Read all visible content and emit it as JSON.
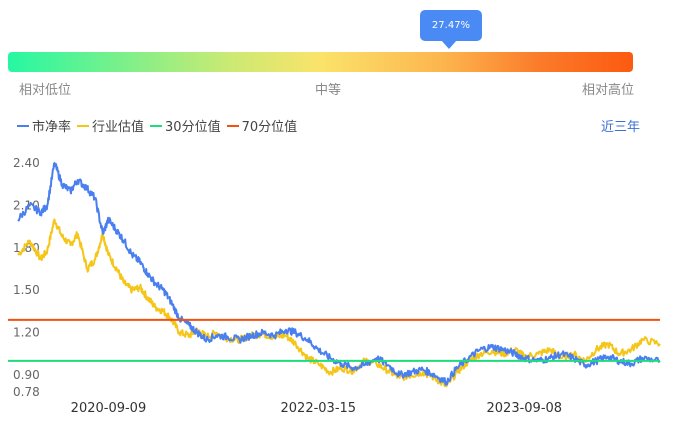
{
  "indicator": {
    "value_label": "27.47%",
    "percentile": 0.2747
  },
  "gauge": {
    "low_label": "相对低位",
    "mid_label": "中等",
    "high_label": "相对高位",
    "colors": [
      "#26f7a3",
      "#fbe36a",
      "#fb5a10"
    ]
  },
  "range_button": "近三年",
  "chart_data": {
    "type": "line",
    "title": "",
    "xlabel": "",
    "ylabel": "",
    "ylim": [
      0.78,
      2.4
    ],
    "yticks": [
      "2.40",
      "2.10",
      "1.80",
      "1.50",
      "1.20",
      "0.90",
      "0.78"
    ],
    "xticks": [
      "2020-09-09",
      "2022-03-15",
      "2023-09-08"
    ],
    "x_start": "2020-01-15",
    "x_end": "2024-08-30",
    "series": [
      {
        "name": "市净率",
        "color": "#4a7ff0",
        "x": [
          "2020-01-15",
          "2020-02-15",
          "2020-03-15",
          "2020-04-01",
          "2020-04-20",
          "2020-05-10",
          "2020-06-01",
          "2020-06-20",
          "2020-07-15",
          "2020-08-05",
          "2020-08-25",
          "2020-09-09",
          "2020-10-01",
          "2020-10-20",
          "2020-11-10",
          "2020-12-01",
          "2020-12-20",
          "2021-01-10",
          "2021-02-01",
          "2021-02-20",
          "2021-03-15",
          "2021-04-10",
          "2021-05-01",
          "2021-05-25",
          "2021-06-20",
          "2021-07-20",
          "2021-08-20",
          "2021-09-20",
          "2021-10-20",
          "2021-11-20",
          "2021-12-20",
          "2022-01-15",
          "2022-02-15",
          "2022-03-15",
          "2022-04-15",
          "2022-05-15",
          "2022-06-15",
          "2022-07-15",
          "2022-08-15",
          "2022-09-15",
          "2022-10-15",
          "2022-11-15",
          "2022-12-15",
          "2023-01-15",
          "2023-02-15",
          "2023-03-15",
          "2023-04-15",
          "2023-05-15",
          "2023-06-15",
          "2023-07-15",
          "2023-08-15",
          "2023-09-08",
          "2023-10-15",
          "2023-11-15",
          "2023-12-15",
          "2024-01-15",
          "2024-02-15",
          "2024-03-15",
          "2024-04-15",
          "2024-05-15",
          "2024-06-15",
          "2024-07-15",
          "2024-08-30"
        ],
        "values": [
          2.0,
          2.1,
          2.05,
          2.1,
          2.4,
          2.25,
          2.2,
          2.28,
          2.22,
          2.15,
          1.9,
          2.0,
          1.92,
          1.85,
          1.75,
          1.7,
          1.62,
          1.55,
          1.5,
          1.42,
          1.3,
          1.25,
          1.2,
          1.15,
          1.18,
          1.17,
          1.15,
          1.18,
          1.2,
          1.18,
          1.22,
          1.2,
          1.15,
          1.08,
          1.02,
          0.98,
          0.95,
          0.97,
          1.02,
          0.97,
          0.9,
          0.92,
          0.94,
          0.9,
          0.85,
          0.95,
          1.02,
          1.08,
          1.1,
          1.08,
          1.05,
          1.02,
          1.0,
          1.02,
          1.05,
          1.02,
          0.97,
          1.0,
          1.03,
          1.0,
          0.98,
          1.02,
          1.0
        ]
      },
      {
        "name": "行业估值",
        "color": "#f5c518",
        "x": [
          "2020-01-15",
          "2020-02-15",
          "2020-03-15",
          "2020-04-01",
          "2020-04-20",
          "2020-05-10",
          "2020-06-01",
          "2020-06-20",
          "2020-07-15",
          "2020-08-05",
          "2020-08-25",
          "2020-09-09",
          "2020-10-01",
          "2020-10-20",
          "2020-11-10",
          "2020-12-01",
          "2020-12-20",
          "2021-01-10",
          "2021-02-01",
          "2021-02-20",
          "2021-03-15",
          "2021-04-10",
          "2021-05-01",
          "2021-05-25",
          "2021-06-20",
          "2021-07-20",
          "2021-08-20",
          "2021-09-20",
          "2021-10-20",
          "2021-11-20",
          "2021-12-20",
          "2022-01-15",
          "2022-02-15",
          "2022-03-15",
          "2022-04-15",
          "2022-05-15",
          "2022-06-15",
          "2022-07-15",
          "2022-08-15",
          "2022-09-15",
          "2022-10-15",
          "2022-11-15",
          "2022-12-15",
          "2023-01-15",
          "2023-02-15",
          "2023-03-15",
          "2023-04-15",
          "2023-05-15",
          "2023-06-15",
          "2023-07-15",
          "2023-08-15",
          "2023-09-08",
          "2023-10-15",
          "2023-11-15",
          "2023-12-15",
          "2024-01-15",
          "2024-02-15",
          "2024-03-15",
          "2024-04-15",
          "2024-05-15",
          "2024-06-15",
          "2024-07-15",
          "2024-08-30"
        ],
        "values": [
          1.75,
          1.85,
          1.72,
          1.78,
          2.0,
          1.88,
          1.82,
          1.9,
          1.65,
          1.72,
          1.9,
          1.75,
          1.65,
          1.55,
          1.5,
          1.52,
          1.45,
          1.38,
          1.35,
          1.3,
          1.2,
          1.18,
          1.22,
          1.17,
          1.2,
          1.16,
          1.15,
          1.18,
          1.19,
          1.17,
          1.18,
          1.12,
          1.02,
          0.98,
          0.92,
          0.95,
          0.93,
          1.0,
          0.98,
          0.93,
          0.88,
          0.9,
          0.92,
          0.88,
          0.82,
          0.92,
          1.0,
          1.05,
          1.07,
          1.05,
          1.08,
          1.03,
          1.05,
          1.08,
          1.02,
          1.05,
          1.0,
          1.08,
          1.12,
          1.05,
          1.08,
          1.15,
          1.12
        ]
      },
      {
        "name": "30分位值",
        "color": "#1fdc7c",
        "values": [
          1.0
        ]
      },
      {
        "name": "70分位值",
        "color": "#f2510e",
        "values": [
          1.29
        ]
      }
    ]
  }
}
